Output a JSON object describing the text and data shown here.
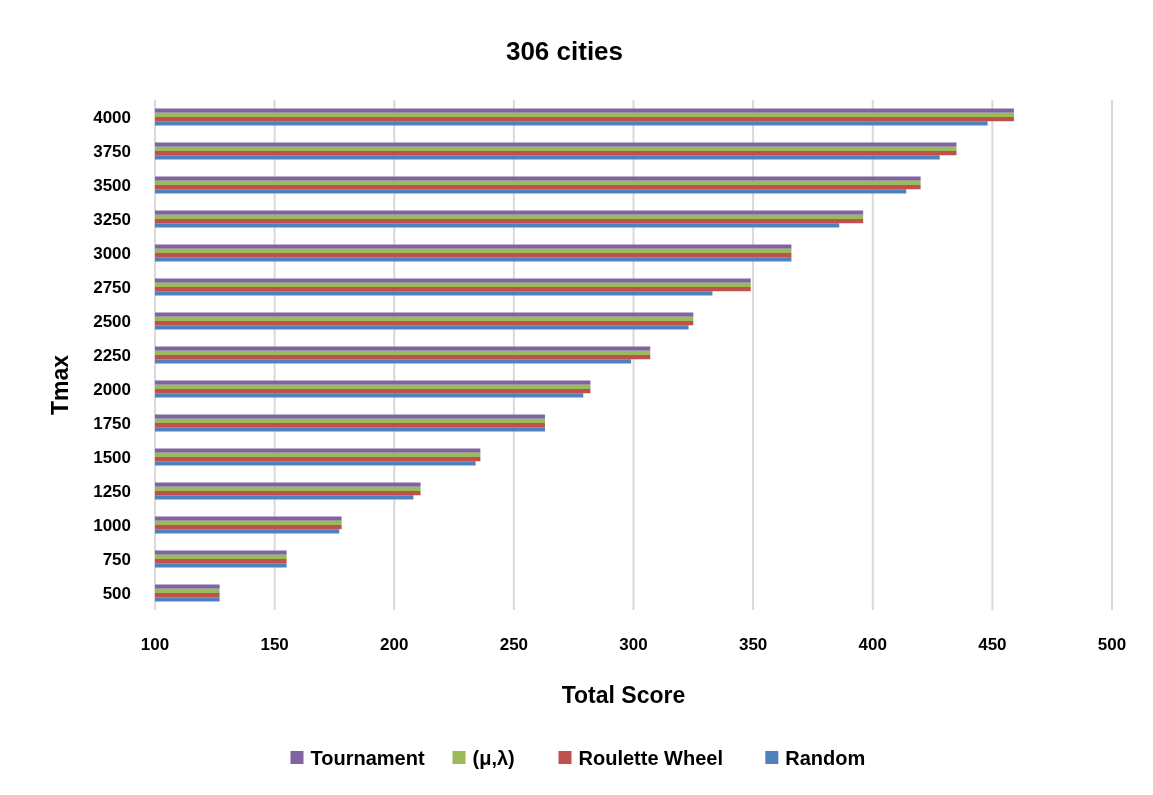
{
  "chart_data": {
    "type": "bar",
    "orientation": "horizontal",
    "title": "306 cities",
    "xlabel": "Total Score",
    "ylabel": "Tmax",
    "categories": [
      "4000",
      "3750",
      "3500",
      "3250",
      "3000",
      "2750",
      "2500",
      "2250",
      "2000",
      "1750",
      "1500",
      "1250",
      "1000",
      "750",
      "500"
    ],
    "series": [
      {
        "name": "Tournament",
        "color": "#8064a2",
        "values": [
          459,
          435,
          420,
          396,
          366,
          349,
          325,
          307,
          282,
          263,
          236,
          211,
          178,
          155,
          127
        ]
      },
      {
        "name": "(μ,λ)",
        "color": "#9bbb59",
        "values": [
          459,
          435,
          420,
          396,
          366,
          349,
          325,
          307,
          282,
          263,
          236,
          211,
          178,
          155,
          127
        ]
      },
      {
        "name": "Roulette Wheel",
        "color": "#c0504d",
        "values": [
          459,
          435,
          420,
          396,
          366,
          349,
          325,
          307,
          282,
          263,
          236,
          211,
          178,
          155,
          127
        ]
      },
      {
        "name": "Random",
        "color": "#4f81bd",
        "values": [
          448,
          428,
          414,
          386,
          366,
          333,
          323,
          299,
          279,
          263,
          234,
          208,
          177,
          155,
          127
        ]
      }
    ],
    "xlim": [
      100,
      500
    ],
    "xticks": [
      100,
      150,
      200,
      250,
      300,
      350,
      400,
      450,
      500
    ],
    "grid": "x",
    "legend": "bottom"
  }
}
